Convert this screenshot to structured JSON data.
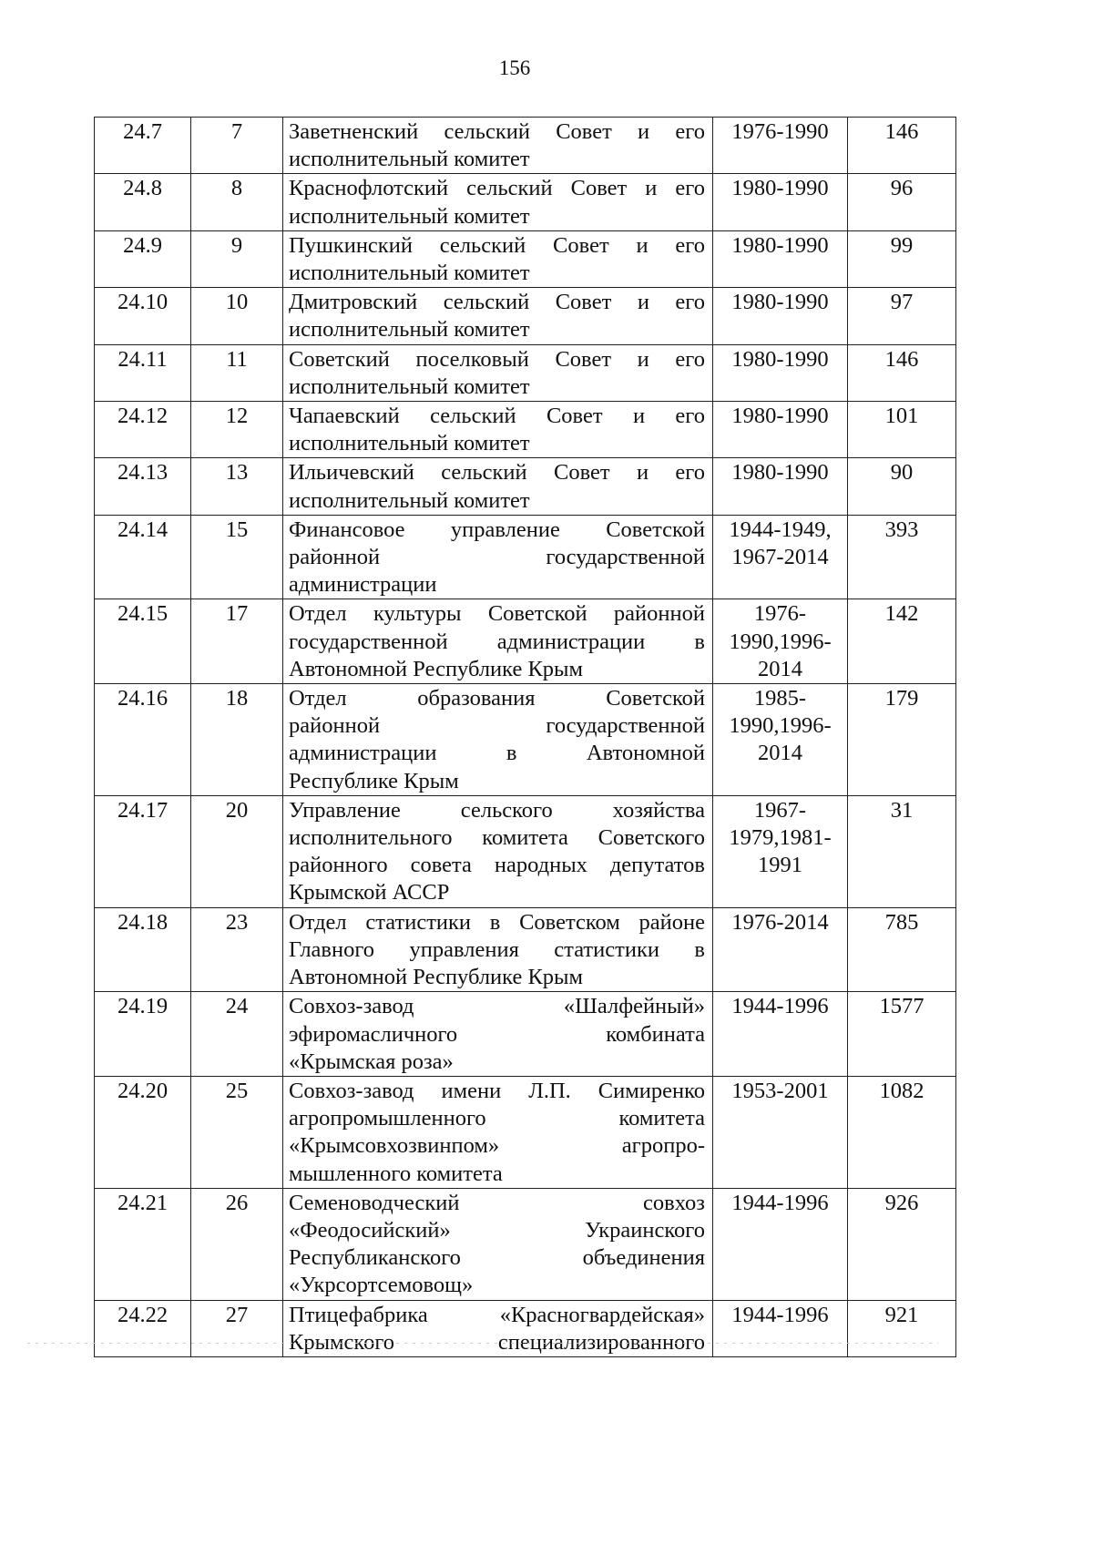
{
  "page_number": "156",
  "rows": [
    {
      "code": "24.7",
      "num": "7",
      "desc": [
        "Заветненский сельский Совет и его",
        "исполнительный комитет"
      ],
      "dates": [
        "1976-1990"
      ],
      "count": "146"
    },
    {
      "code": "24.8",
      "num": "8",
      "desc": [
        "Краснофлотский сельский Совет и его",
        "исполнительный комитет"
      ],
      "dates": [
        "1980-1990"
      ],
      "count": "96"
    },
    {
      "code": "24.9",
      "num": "9",
      "desc": [
        "Пушкинский сельский Совет и его",
        "исполнительный комитет"
      ],
      "dates": [
        "1980-1990"
      ],
      "count": "99"
    },
    {
      "code": "24.10",
      "num": "10",
      "desc": [
        "Дмитровский сельский Совет и его",
        "исполнительный комитет"
      ],
      "dates": [
        "1980-1990"
      ],
      "count": "97"
    },
    {
      "code": "24.11",
      "num": "11",
      "desc": [
        "Советский поселковый Совет и его",
        "исполнительный комитет"
      ],
      "dates": [
        "1980-1990"
      ],
      "count": "146"
    },
    {
      "code": "24.12",
      "num": "12",
      "desc": [
        "Чапаевский сельский Совет и его",
        "исполнительный комитет"
      ],
      "dates": [
        "1980-1990"
      ],
      "count": "101"
    },
    {
      "code": "24.13",
      "num": "13",
      "desc": [
        "Ильичевский сельский Совет и его",
        "исполнительный комитет"
      ],
      "dates": [
        "1980-1990"
      ],
      "count": "90"
    },
    {
      "code": "24.14",
      "num": "15",
      "desc": [
        "Финансовое управление Советской",
        "районной государственной",
        "администрации"
      ],
      "dates": [
        "1944-1949,",
        "1967-2014"
      ],
      "count": "393"
    },
    {
      "code": "24.15",
      "num": "17",
      "desc": [
        "Отдел культуры Советской районной",
        "государственной администрации в",
        "Автономной Республике Крым"
      ],
      "dates": [
        "1976-",
        "1990,1996-",
        "2014"
      ],
      "count": "142"
    },
    {
      "code": "24.16",
      "num": "18",
      "desc": [
        "Отдел образования Советской",
        "районной государственной",
        "администрации в Автономной",
        "Республике Крым"
      ],
      "dates": [
        "1985-",
        "1990,1996-",
        "2014"
      ],
      "count": "179"
    },
    {
      "code": "24.17",
      "num": "20",
      "desc": [
        "Управление сельского хозяйства",
        "исполнительного комитета Советского",
        "районного совета народных депутатов",
        "Крымской АССР"
      ],
      "dates": [
        "1967-",
        "1979,1981-",
        "1991"
      ],
      "count": "31"
    },
    {
      "code": "24.18",
      "num": "23",
      "desc": [
        "Отдел статистики в Советском районе",
        "Главного управления статистики в",
        "Автономной Республике Крым"
      ],
      "dates": [
        "1976-2014"
      ],
      "count": "785"
    },
    {
      "code": "24.19",
      "num": "24",
      "desc": [
        "Совхоз-завод «Шалфейный»",
        "эфиромасличного комбината",
        "«Крымская роза»"
      ],
      "dates": [
        "1944-1996"
      ],
      "count": "1577"
    },
    {
      "code": "24.20",
      "num": "25",
      "desc": [
        "Совхоз-завод имени Л.П. Симиренко",
        "агропромышленного комитета",
        "«Крымсовхозвинпом» агропро-",
        "мышленного комитета"
      ],
      "dates": [
        "1953-2001"
      ],
      "count": "1082"
    },
    {
      "code": "24.21",
      "num": "26",
      "desc": [
        "Семеноводческий совхоз",
        "«Феодосийский» Украинского",
        "Республиканского объединения",
        "«Укрсортсемовощ»"
      ],
      "dates": [
        "1944-1996"
      ],
      "count": "926"
    },
    {
      "code": "24.22",
      "num": "27",
      "desc": [
        "Птицефабрика «Красногвардейская»",
        "Крымского специализированного"
      ],
      "dates": [
        "1944-1996"
      ],
      "count": "921"
    }
  ]
}
